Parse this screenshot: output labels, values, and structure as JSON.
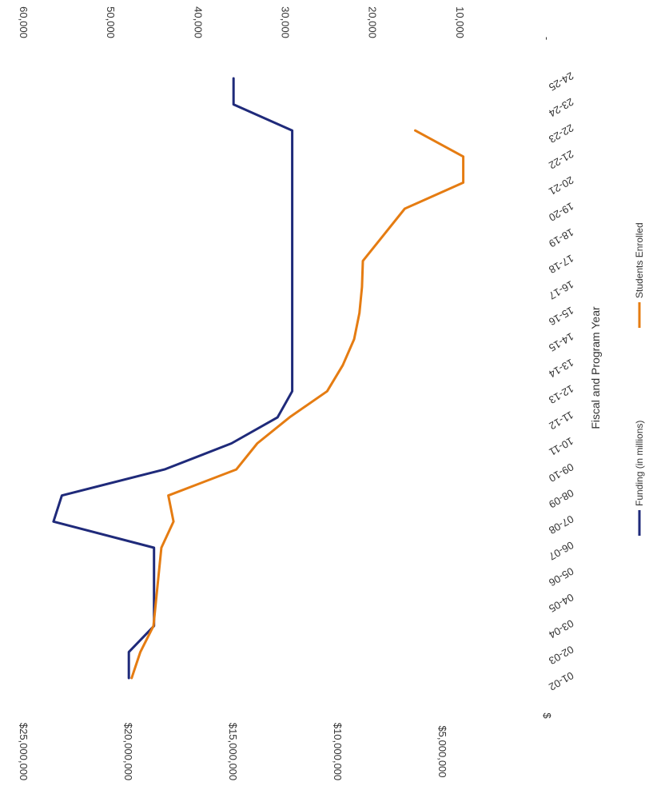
{
  "chart_data": {
    "type": "line",
    "title": "",
    "xlabel": "Fiscal and Program Year",
    "ylabel_left": "",
    "ylabel_right": "",
    "categories": [
      "01-02",
      "02-03",
      "03-04",
      "04-05",
      "05-06",
      "06-07",
      "07-08",
      "08-09",
      "09-10",
      "10-11",
      "11-12",
      "12-13",
      "13-14",
      "14-15",
      "15-16",
      "16-17",
      "17-18",
      "18-19",
      "19-20",
      "20-21",
      "21-22",
      "22-23",
      "23-24",
      "24-25"
    ],
    "left_axis": {
      "ticks": [
        "$",
        "$5,000,000",
        "$10,000,000",
        "$15,000,000",
        "$20,000,000",
        "$25,000,000"
      ],
      "tick_values": [
        0,
        5000000,
        10000000,
        15000000,
        20000000,
        25000000
      ],
      "range": [
        0,
        25000000
      ]
    },
    "right_axis": {
      "ticks": [
        "-",
        "10,000",
        "20,000",
        "30,000",
        "40,000",
        "50,000",
        "60,000"
      ],
      "tick_values": [
        0,
        10000,
        20000,
        30000,
        40000,
        50000,
        60000
      ],
      "range": [
        0,
        60000
      ]
    },
    "series": [
      {
        "name": "Funding (in millions)",
        "axis": "left",
        "color": "#1f2a7a",
        "values": [
          19800000,
          19800000,
          18600000,
          18600000,
          18600000,
          18600000,
          23400000,
          23000000,
          18100000,
          14900000,
          12700000,
          12000000,
          12000000,
          12000000,
          12000000,
          12000000,
          12000000,
          12000000,
          12000000,
          12000000,
          12000000,
          12000000,
          14800000,
          14800000
        ]
      },
      {
        "name": "Students Enrolled",
        "axis": "right",
        "color": "#e57c12",
        "values": [
          47200,
          46200,
          44700,
          44400,
          44100,
          43800,
          42400,
          43000,
          35200,
          32800,
          29100,
          24800,
          23000,
          21700,
          21100,
          20800,
          20700,
          18300,
          15900,
          9200,
          9200,
          14700,
          null,
          null
        ]
      }
    ],
    "grid": false,
    "legend_position": "bottom",
    "orientation": "rotated-90-clockwise"
  }
}
